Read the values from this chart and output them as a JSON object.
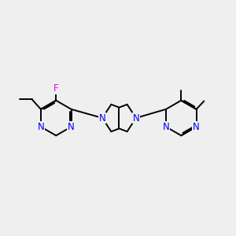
{
  "background_color": "#efefef",
  "bond_color": "#000000",
  "N_color": "#0000ee",
  "F_color": "#ee00ee",
  "line_width": 1.4,
  "figsize": [
    3.0,
    3.0
  ],
  "dpi": 100,
  "xlim": [
    0,
    10
  ],
  "ylim": [
    2.5,
    7.5
  ]
}
